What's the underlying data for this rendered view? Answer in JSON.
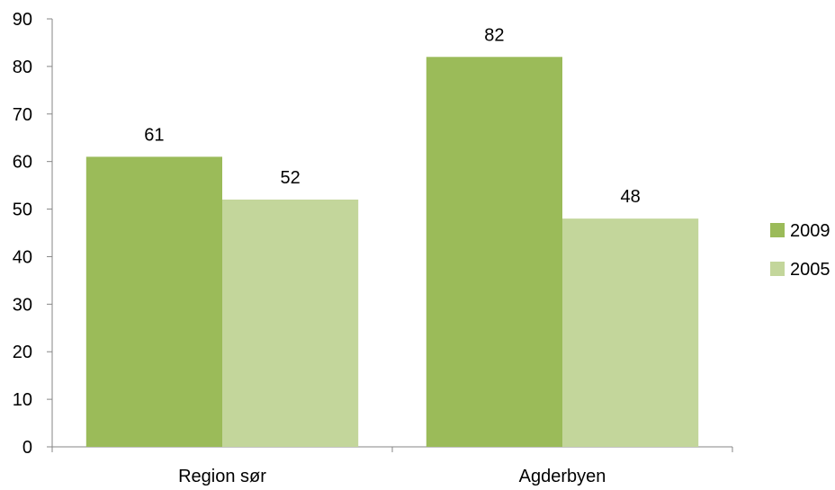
{
  "chart_data": {
    "type": "bar",
    "categories": [
      "Region sør",
      "Agderbyen"
    ],
    "series": [
      {
        "name": "2009",
        "values": [
          61,
          82
        ],
        "labels": [
          "61",
          "82"
        ],
        "color": "#9bbb59"
      },
      {
        "name": "2005",
        "values": [
          52,
          48
        ],
        "labels": [
          "52",
          "48"
        ],
        "color": "#c3d69b"
      }
    ],
    "ylim": [
      0,
      90
    ],
    "yticks": [
      "0",
      "10",
      "20",
      "30",
      "40",
      "50",
      "60",
      "70",
      "80",
      "90"
    ],
    "grid": false,
    "legend_position": "right"
  }
}
